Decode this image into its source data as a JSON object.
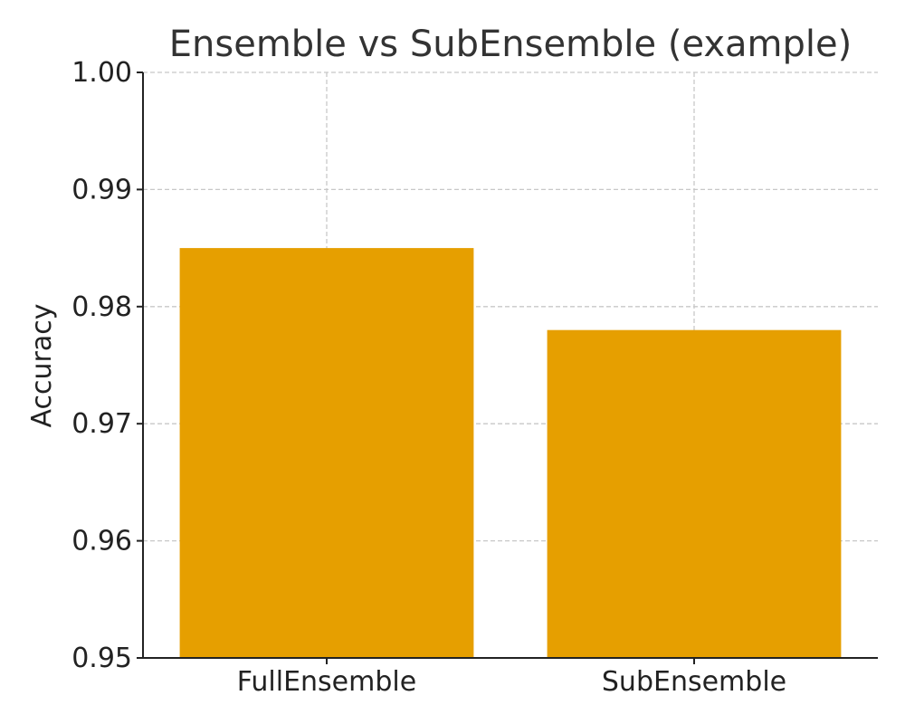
{
  "chart_data": {
    "type": "bar",
    "title": "Ensemble vs SubEnsemble (example)",
    "xlabel": "",
    "ylabel": "Accuracy",
    "categories": [
      "FullEnsemble",
      "SubEnsemble"
    ],
    "values": [
      0.985,
      0.978
    ],
    "ylim": [
      0.95,
      1.0
    ],
    "yticks": [
      0.95,
      0.96,
      0.97,
      0.98,
      0.99,
      1.0
    ],
    "ytick_labels": [
      "0.95",
      "0.96",
      "0.97",
      "0.98",
      "0.99",
      "1.00"
    ],
    "bar_color": "#E69F00",
    "grid": true,
    "legend": "none"
  }
}
